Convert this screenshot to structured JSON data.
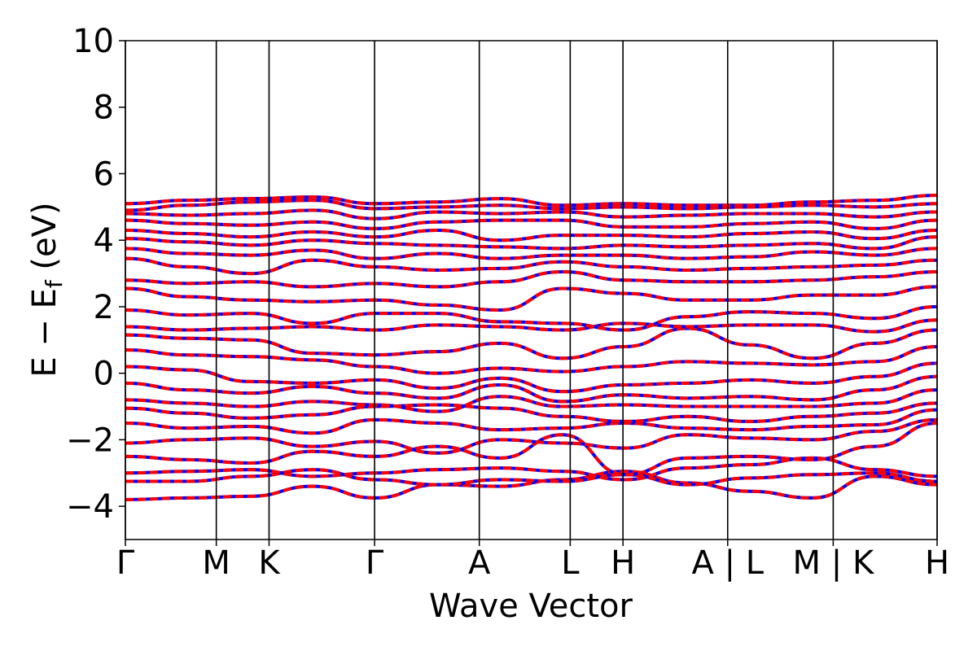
{
  "chart_data": {
    "type": "line",
    "title": "",
    "xlabel": "Wave Vector",
    "ylabel": {
      "prefix": "E − E",
      "subscript": "f",
      "suffix": " (eV)"
    },
    "ylim": [
      -5,
      10
    ],
    "yticks": [
      "−4",
      "−2",
      "0",
      "2",
      "4",
      "6",
      "8",
      "10"
    ],
    "ytick_values": [
      -4,
      -2,
      0,
      2,
      4,
      6,
      8,
      10
    ],
    "xlim": [
      0,
      1
    ],
    "kpoints": [
      {
        "label": "Γ",
        "x": 0.0
      },
      {
        "label": "M",
        "x": 0.112
      },
      {
        "label": "K",
        "x": 0.177
      },
      {
        "label": "Γ",
        "x": 0.307
      },
      {
        "label": "A",
        "x": 0.436
      },
      {
        "label": "L",
        "x": 0.548
      },
      {
        "label": "H",
        "x": 0.613
      },
      {
        "label": "A | L",
        "x": 0.742
      },
      {
        "label": "M | K",
        "x": 0.872
      },
      {
        "label": "H",
        "x": 1.0
      }
    ],
    "colors": {
      "spin_up": "#ff0000",
      "spin_down": "#0000ff"
    },
    "bands": [
      [
        -3.8,
        -3.75,
        -3.7,
        -3.4,
        -3.75,
        -3.35,
        -3.4,
        -3.2,
        -2.95,
        -3.3,
        -3.55,
        -3.75,
        -3.1,
        -3.35
      ],
      [
        -3.25,
        -3.25,
        -3.1,
        -2.9,
        -3.2,
        -3.35,
        -3.2,
        -3.25,
        -3.05,
        -3.35,
        -3.15,
        -3.05,
        -3.0,
        -3.25
      ],
      [
        -3.0,
        -2.95,
        -2.9,
        -3.1,
        -3.0,
        -2.9,
        -2.85,
        -2.95,
        -3.2,
        -2.85,
        -2.75,
        -2.55,
        -2.9,
        -3.1
      ],
      [
        -2.5,
        -2.6,
        -2.7,
        -2.35,
        -2.5,
        -2.2,
        -2.55,
        -1.85,
        -3.05,
        -2.55,
        -2.5,
        -2.6,
        -2.2,
        -1.5
      ],
      [
        -2.1,
        -2.0,
        -1.95,
        -2.2,
        -2.05,
        -2.4,
        -2.0,
        -2.1,
        -2.25,
        -1.85,
        -1.95,
        -2.0,
        -1.75,
        -1.4
      ],
      [
        -1.5,
        -1.65,
        -1.6,
        -1.8,
        -1.4,
        -1.5,
        -1.7,
        -1.65,
        -1.5,
        -1.65,
        -1.7,
        -1.6,
        -1.55,
        -1.1
      ],
      [
        -1.05,
        -1.2,
        -1.35,
        -1.25,
        -1.0,
        -0.95,
        -1.05,
        -1.3,
        -1.45,
        -1.3,
        -1.45,
        -1.3,
        -1.2,
        -0.9
      ],
      [
        -0.8,
        -0.9,
        -1.0,
        -0.85,
        -0.95,
        -1.15,
        -0.7,
        -1.0,
        -0.95,
        -1.0,
        -1.0,
        -1.0,
        -0.9,
        -0.5
      ],
      [
        -0.3,
        -0.5,
        -0.6,
        -0.4,
        -0.6,
        -0.75,
        -0.35,
        -0.85,
        -0.65,
        -0.75,
        -0.7,
        -0.8,
        -0.5,
        -0.1
      ],
      [
        0.2,
        0.1,
        -0.25,
        -0.3,
        -0.2,
        -0.45,
        -0.15,
        -0.55,
        -0.35,
        -0.3,
        -0.2,
        -0.3,
        -0.1,
        0.3
      ],
      [
        0.7,
        0.55,
        0.5,
        0.4,
        0.2,
        0.0,
        0.15,
        0.05,
        0.2,
        0.35,
        0.3,
        0.25,
        0.35,
        0.8
      ],
      [
        1.15,
        1.05,
        1.0,
        0.6,
        0.55,
        0.65,
        0.9,
        0.45,
        0.8,
        1.35,
        0.85,
        0.45,
        0.9,
        1.3
      ],
      [
        1.4,
        1.3,
        1.35,
        1.4,
        1.3,
        1.45,
        1.4,
        1.3,
        1.5,
        1.4,
        1.45,
        1.45,
        1.25,
        1.6
      ],
      [
        1.9,
        1.75,
        1.8,
        1.5,
        1.8,
        1.8,
        1.55,
        1.5,
        1.3,
        1.7,
        1.85,
        1.8,
        1.65,
        2.0
      ],
      [
        2.55,
        2.3,
        2.2,
        2.15,
        2.2,
        2.05,
        1.9,
        2.55,
        2.4,
        2.2,
        2.2,
        2.35,
        2.35,
        2.6
      ],
      [
        2.8,
        2.7,
        2.75,
        2.6,
        2.7,
        2.6,
        2.75,
        3.05,
        2.8,
        2.75,
        2.75,
        2.8,
        2.9,
        3.05
      ],
      [
        3.45,
        3.2,
        3.0,
        3.4,
        3.2,
        3.1,
        3.15,
        3.35,
        3.2,
        3.1,
        3.15,
        3.2,
        3.25,
        3.4
      ],
      [
        3.75,
        3.6,
        3.55,
        3.7,
        3.45,
        3.6,
        3.45,
        3.55,
        3.55,
        3.45,
        3.5,
        3.65,
        3.55,
        3.75
      ],
      [
        4.05,
        3.95,
        3.85,
        4.0,
        3.9,
        3.85,
        3.8,
        3.75,
        3.85,
        3.8,
        3.85,
        3.9,
        3.75,
        4.1
      ],
      [
        4.3,
        4.2,
        4.1,
        4.25,
        4.1,
        4.3,
        4.0,
        4.15,
        4.15,
        4.1,
        4.2,
        4.25,
        4.05,
        4.3
      ],
      [
        4.6,
        4.5,
        4.45,
        4.55,
        4.35,
        4.55,
        4.6,
        4.6,
        4.4,
        4.4,
        4.5,
        4.55,
        4.35,
        4.6
      ],
      [
        4.8,
        4.75,
        4.8,
        4.9,
        4.65,
        4.85,
        4.8,
        4.85,
        4.7,
        4.75,
        4.8,
        4.8,
        4.7,
        4.85
      ],
      [
        4.9,
        5.05,
        5.15,
        5.2,
        4.95,
        5.0,
        5.05,
        4.95,
        5.0,
        4.95,
        5.0,
        5.05,
        5.0,
        5.1
      ],
      [
        5.1,
        5.2,
        5.25,
        5.3,
        5.1,
        5.15,
        5.25,
        5.05,
        5.1,
        5.05,
        5.05,
        5.15,
        5.2,
        5.35
      ]
    ]
  }
}
